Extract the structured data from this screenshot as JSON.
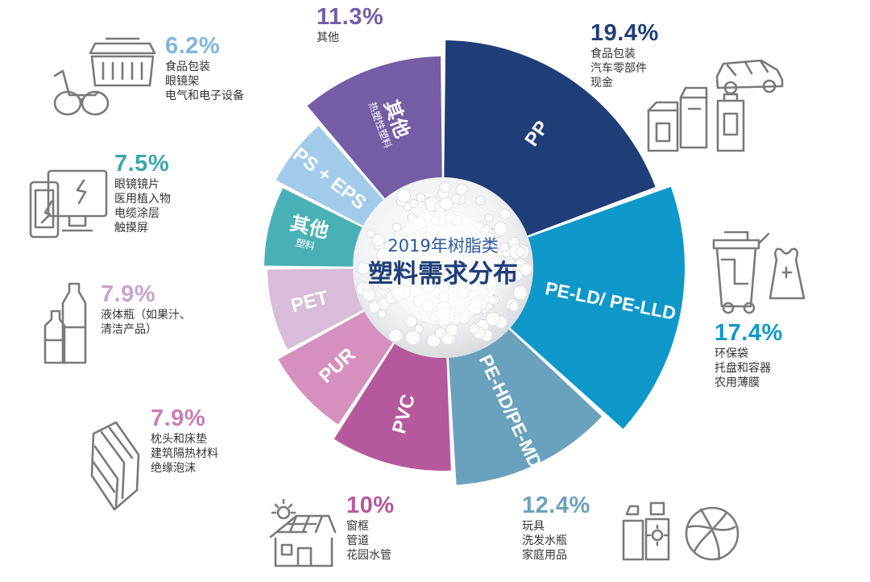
{
  "center": {
    "title_line1": "2019年树脂类",
    "title_line2": "塑料需求分布"
  },
  "chart_data": {
    "type": "pie",
    "title": "2019年树脂类塑料需求分布",
    "unit": "%",
    "slices": [
      {
        "key": "pp",
        "label": "PP",
        "sublabel": "",
        "value": 19.4,
        "pct_text": "19.4%",
        "color": "#1f3e78",
        "uses": [
          "食品包装",
          "汽车零部件",
          "现金"
        ]
      },
      {
        "key": "peld",
        "label": "PE-LD/ PE-LLD",
        "sublabel": "",
        "value": 17.4,
        "pct_text": "17.4%",
        "color": "#0e98c9",
        "uses": [
          "环保袋",
          "托盘和容器",
          "农用薄膜"
        ]
      },
      {
        "key": "pehd",
        "label": "PE-HD/PE-MD",
        "sublabel": "",
        "value": 12.4,
        "pct_text": "12.4%",
        "color": "#6aa2bd",
        "uses": [
          "玩具",
          "洗发水瓶",
          "家庭用品"
        ]
      },
      {
        "key": "pvc",
        "label": "PVC",
        "sublabel": "",
        "value": 10,
        "pct_text": "10%",
        "color": "#b6589c",
        "uses": [
          "窗框",
          "管道",
          "花园水管"
        ]
      },
      {
        "key": "pur",
        "label": "PUR",
        "sublabel": "",
        "value": 7.9,
        "pct_text": "7.9%",
        "color": "#d690c0",
        "uses": [
          "枕头和床垫",
          "建筑隔热材料",
          "绝缘泡沫"
        ]
      },
      {
        "key": "pet",
        "label": "PET",
        "sublabel": "",
        "value": 7.9,
        "pct_text": "7.9%",
        "color": "#d9bcd9",
        "uses": [
          "液体瓶（如果汁、",
          "清洁产品）"
        ]
      },
      {
        "key": "other_plastics",
        "label": "其他",
        "sublabel": "塑料",
        "value": 7.5,
        "pct_text": "7.5%",
        "color": "#49b1b6",
        "uses": [
          "眼镜镜片",
          "医用植入物",
          "电缆涂层",
          "触摸屏"
        ]
      },
      {
        "key": "ps_eps",
        "label": "PS + EPS",
        "sublabel": "",
        "value": 6.2,
        "pct_text": "6.2%",
        "color": "#a2cbea",
        "uses": [
          "食品包装",
          "眼镜架",
          "电气和电子设备"
        ]
      },
      {
        "key": "other_thermo",
        "label": "其他",
        "sublabel": "热塑性塑料",
        "value": 11.3,
        "pct_text": "11.3%",
        "color": "#745da4",
        "uses": [
          "其他"
        ]
      }
    ]
  },
  "icons": {
    "pp": "car-and-packaging-icon",
    "peld": "trash-bin-and-bag-icon",
    "pehd": "bottles-and-ball-icon",
    "pvc": "house-with-solar-panel-icon",
    "pur": "mattress-icon",
    "pet": "bottles-icon",
    "other_plastics": "devices-icon",
    "ps_eps": "glasses-and-food-box-icon"
  }
}
